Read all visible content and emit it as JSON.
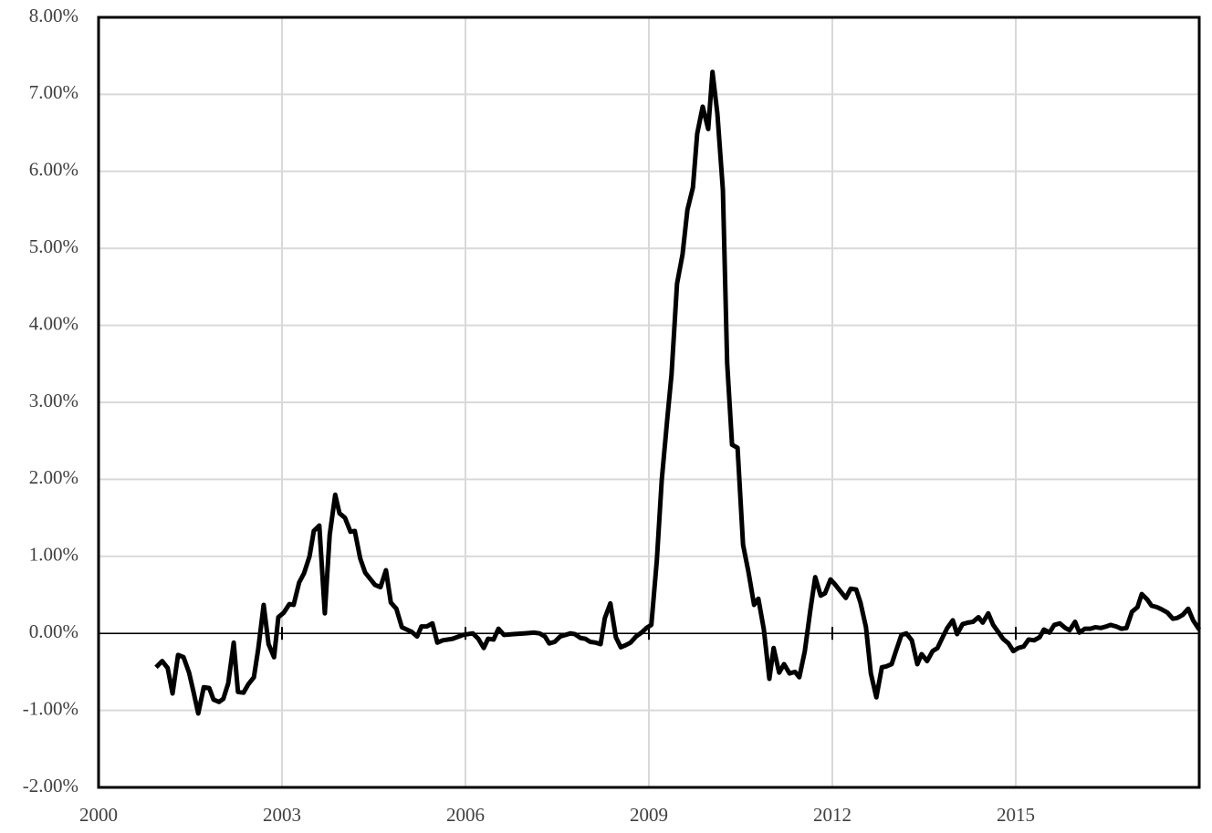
{
  "chart_data": {
    "type": "line",
    "x": [
      2000.94,
      2001.04,
      2001.13,
      2001.21,
      2001.3,
      2001.39,
      2001.48,
      2001.55,
      2001.63,
      2001.72,
      2001.81,
      2001.88,
      2001.97,
      2002.04,
      2002.12,
      2002.21,
      2002.28,
      2002.37,
      2002.45,
      2002.54,
      2002.61,
      2002.7,
      2002.78,
      2002.87,
      2002.94,
      2003.03,
      2003.12,
      2003.19,
      2003.28,
      2003.36,
      2003.45,
      2003.52,
      2003.61,
      2003.7,
      2003.78,
      2003.87,
      2003.94,
      2004.03,
      2004.12,
      2004.19,
      2004.28,
      2004.36,
      2004.45,
      2004.52,
      2004.61,
      2004.7,
      2004.78,
      2004.87,
      2004.96,
      2005.12,
      2005.21,
      2005.28,
      2005.37,
      2005.46,
      2005.54,
      2005.63,
      2005.79,
      2005.96,
      2006.12,
      2006.21,
      2006.3,
      2006.37,
      2006.46,
      2006.54,
      2006.63,
      2006.79,
      2006.96,
      2007.12,
      2007.21,
      2007.3,
      2007.37,
      2007.46,
      2007.55,
      2007.72,
      2007.79,
      2007.88,
      2007.96,
      2008.04,
      2008.13,
      2008.21,
      2008.28,
      2008.37,
      2008.46,
      2008.54,
      2008.63,
      2008.7,
      2008.79,
      2008.88,
      2008.96,
      2009.04,
      2009.13,
      2009.21,
      2009.3,
      2009.37,
      2009.46,
      2009.55,
      2009.63,
      2009.72,
      2009.79,
      2009.88,
      2009.97,
      2010.04,
      2010.12,
      2010.21,
      2010.28,
      2010.36,
      2010.45,
      2010.54,
      2010.63,
      2010.72,
      2010.79,
      2010.88,
      2010.97,
      2011.04,
      2011.13,
      2011.21,
      2011.3,
      2011.39,
      2011.46,
      2011.55,
      2011.64,
      2011.72,
      2011.81,
      2011.88,
      2011.97,
      2012.04,
      2012.13,
      2012.22,
      2012.3,
      2012.39,
      2012.46,
      2012.55,
      2012.63,
      2012.72,
      2012.81,
      2012.88,
      2012.97,
      2013.04,
      2013.13,
      2013.21,
      2013.3,
      2013.39,
      2013.46,
      2013.55,
      2013.64,
      2013.72,
      2013.81,
      2013.88,
      2013.97,
      2014.04,
      2014.13,
      2014.22,
      2014.3,
      2014.39,
      2014.46,
      2014.55,
      2014.63,
      2014.72,
      2014.79,
      2014.88,
      2014.96,
      2015.04,
      2015.13,
      2015.21,
      2015.3,
      2015.39,
      2015.46,
      2015.55,
      2015.63,
      2015.72,
      2015.81,
      2015.88,
      2015.97,
      2016.04,
      2016.13,
      2016.22,
      2016.3,
      2016.39,
      2016.48,
      2016.55,
      2016.64,
      2016.73,
      2016.81,
      2016.9,
      2016.99,
      2017.06,
      2017.15,
      2017.22,
      2017.31,
      2017.39,
      2017.48,
      2017.57,
      2017.64,
      2017.73,
      2017.82,
      2017.9,
      2018.0
    ],
    "series": [
      {
        "color": "#000000",
        "values": [
          -0.44,
          -0.36,
          -0.45,
          -0.78,
          -0.28,
          -0.31,
          -0.51,
          -0.75,
          -1.04,
          -0.7,
          -0.71,
          -0.86,
          -0.89,
          -0.85,
          -0.65,
          -0.12,
          -0.76,
          -0.77,
          -0.66,
          -0.57,
          -0.21,
          0.37,
          -0.14,
          -0.31,
          0.21,
          0.27,
          0.38,
          0.37,
          0.66,
          0.78,
          1.0,
          1.33,
          1.4,
          0.26,
          1.28,
          1.8,
          1.56,
          1.5,
          1.32,
          1.33,
          0.97,
          0.79,
          0.7,
          0.63,
          0.6,
          0.82,
          0.4,
          0.32,
          0.08,
          0.02,
          -0.04,
          0.09,
          0.09,
          0.13,
          -0.12,
          -0.09,
          -0.07,
          -0.02,
          0.0,
          -0.07,
          -0.19,
          -0.07,
          -0.08,
          0.06,
          -0.02,
          -0.01,
          0.0,
          0.01,
          0.0,
          -0.04,
          -0.13,
          -0.11,
          -0.04,
          0.0,
          -0.01,
          -0.06,
          -0.07,
          -0.11,
          -0.12,
          -0.14,
          0.2,
          0.39,
          -0.05,
          -0.18,
          -0.15,
          -0.12,
          -0.04,
          0.01,
          0.07,
          0.11,
          0.95,
          1.99,
          2.78,
          3.36,
          4.54,
          4.92,
          5.5,
          5.79,
          6.49,
          6.84,
          6.55,
          7.29,
          6.75,
          5.76,
          3.51,
          2.45,
          2.41,
          1.15,
          0.79,
          0.37,
          0.45,
          0.05,
          -0.59,
          -0.19,
          -0.51,
          -0.4,
          -0.52,
          -0.5,
          -0.57,
          -0.23,
          0.3,
          0.73,
          0.49,
          0.52,
          0.7,
          0.64,
          0.55,
          0.46,
          0.58,
          0.57,
          0.4,
          0.08,
          -0.52,
          -0.83,
          -0.44,
          -0.43,
          -0.4,
          -0.23,
          -0.02,
          0.0,
          -0.09,
          -0.4,
          -0.27,
          -0.36,
          -0.23,
          -0.19,
          -0.04,
          0.07,
          0.17,
          -0.01,
          0.12,
          0.14,
          0.15,
          0.21,
          0.14,
          0.26,
          0.11,
          0.01,
          -0.07,
          -0.13,
          -0.23,
          -0.19,
          -0.17,
          -0.08,
          -0.09,
          -0.05,
          0.05,
          0.01,
          0.11,
          0.13,
          0.07,
          0.04,
          0.15,
          0.01,
          0.06,
          0.06,
          0.08,
          0.07,
          0.09,
          0.11,
          0.09,
          0.06,
          0.07,
          0.28,
          0.34,
          0.51,
          0.44,
          0.36,
          0.34,
          0.31,
          0.27,
          0.19,
          0.2,
          0.24,
          0.32,
          0.17,
          0.05
        ]
      }
    ],
    "xlim": [
      2000,
      2018
    ],
    "xticks": [
      2000,
      2003,
      2006,
      2009,
      2012,
      2015
    ],
    "ylim": [
      -2,
      8
    ],
    "yticks": [
      {
        "value": -2,
        "label": "-2.00%"
      },
      {
        "value": -1,
        "label": "-1.00%"
      },
      {
        "value": 0,
        "label": "0.00%"
      },
      {
        "value": 1,
        "label": "1.00%"
      },
      {
        "value": 2,
        "label": "2.00%"
      },
      {
        "value": 3,
        "label": "3.00%"
      },
      {
        "value": 4,
        "label": "4.00%"
      },
      {
        "value": 5,
        "label": "5.00%"
      },
      {
        "value": 6,
        "label": "6.00%"
      },
      {
        "value": 7,
        "label": "7.00%"
      },
      {
        "value": 8,
        "label": "8.00%"
      }
    ],
    "grid": true
  }
}
